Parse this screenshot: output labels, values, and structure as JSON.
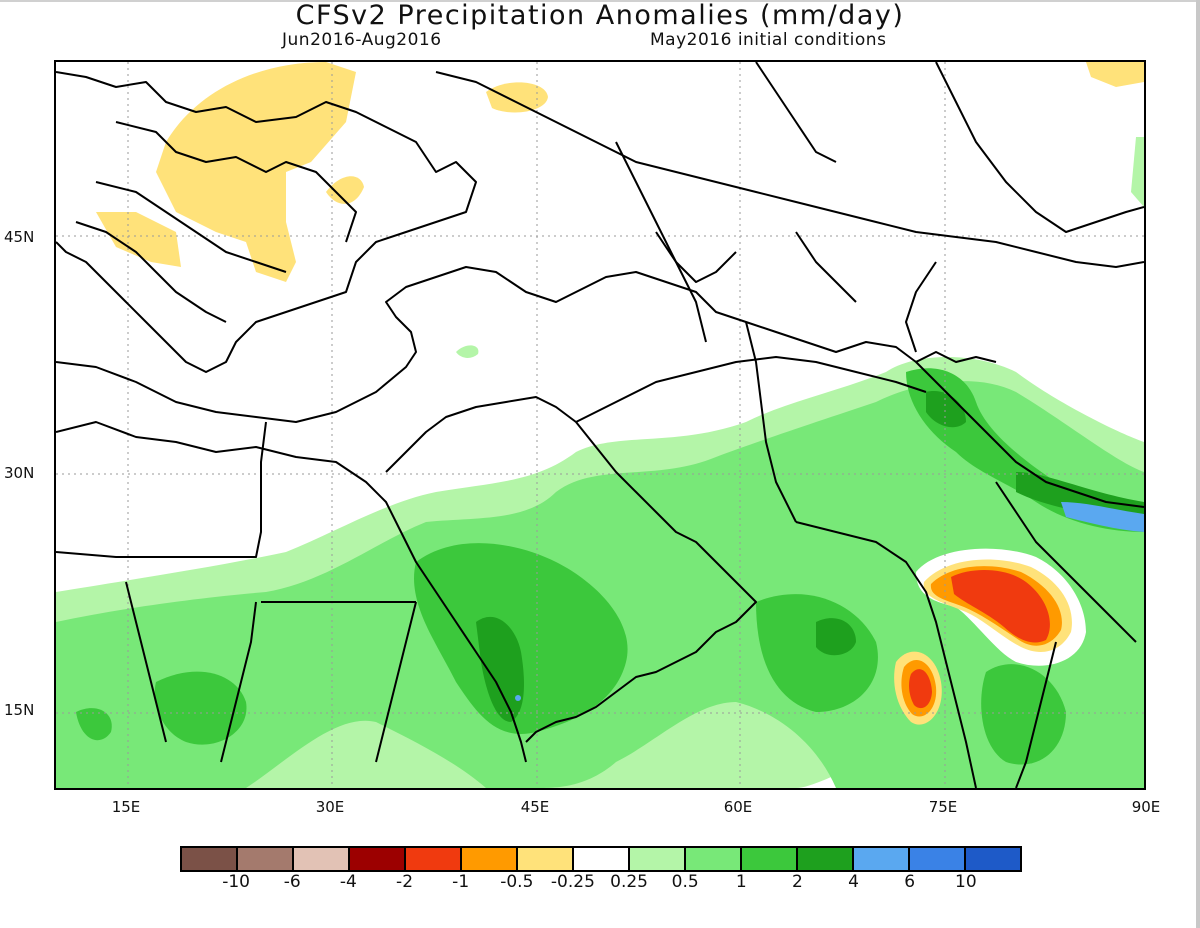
{
  "title": "CFSv2 Precipitation Anomalies (mm/day)",
  "period": "Jun2016-Aug2016",
  "initial_conditions": "May2016 initial conditions",
  "latitude_labels": [
    "45N",
    "30N",
    "15N"
  ],
  "longitude_labels": [
    "15E",
    "30E",
    "45E",
    "60E",
    "75E",
    "90E"
  ],
  "colorbar": {
    "colors": [
      "#7b5147",
      "#a47a6d",
      "#e2c2b5",
      "#9c0000",
      "#f03a0f",
      "#ff9a00",
      "#ffe27a",
      "#ffffff",
      "#b4f5a8",
      "#78e878",
      "#3cc83c",
      "#1ea01e",
      "#5aa8f0",
      "#3a82e6",
      "#1e5ac8"
    ],
    "labels": [
      "-10",
      "-6",
      "-4",
      "-2",
      "-1",
      "-0.5",
      "-0.25",
      "0.25",
      "0.5",
      "1",
      "2",
      "4",
      "6",
      "10"
    ]
  }
}
